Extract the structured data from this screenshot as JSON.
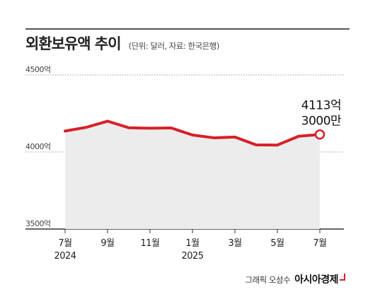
{
  "header": {
    "title": "외환보유액 추이",
    "subtitle": "(단위: 달러, 자료: 한국은행)"
  },
  "chart_data": {
    "type": "area",
    "x": [
      "2024-07",
      "2024-08",
      "2024-09",
      "2024-10",
      "2024-11",
      "2024-12",
      "2025-01",
      "2025-02",
      "2025-03",
      "2025-04",
      "2025-05",
      "2025-06",
      "2025-07"
    ],
    "tick_labels": [
      {
        "x": "2024-07",
        "lines": [
          "7월",
          "2024"
        ]
      },
      {
        "x": "2024-09",
        "lines": [
          "9월"
        ]
      },
      {
        "x": "2024-11",
        "lines": [
          "11월"
        ]
      },
      {
        "x": "2025-01",
        "lines": [
          "1월",
          "2025"
        ]
      },
      {
        "x": "2025-03",
        "lines": [
          "3월"
        ]
      },
      {
        "x": "2025-05",
        "lines": [
          "5월"
        ]
      },
      {
        "x": "2025-07",
        "lines": [
          "7월"
        ]
      }
    ],
    "series": [
      {
        "values": [
          4136,
          4160,
          4200,
          4157,
          4154,
          4156,
          4110,
          4092,
          4097,
          4046,
          4045,
          4102,
          4113.3
        ]
      }
    ],
    "yticks": [
      {
        "value": 4500,
        "label": "4500억"
      },
      {
        "value": 4000,
        "label": "4000억"
      },
      {
        "value": 3500,
        "label": "3500억"
      }
    ],
    "ylim": [
      3500,
      4500
    ],
    "annotation": {
      "x": "2025-07",
      "line1": "4113억",
      "line2": "3000만"
    },
    "colors": {
      "line": "#d62027",
      "area": "#ececec",
      "grid": "#999999",
      "axis": "#333333"
    },
    "grid": true
  },
  "footer": {
    "credit": "그래픽 오성수",
    "brand": "아시아경제"
  }
}
